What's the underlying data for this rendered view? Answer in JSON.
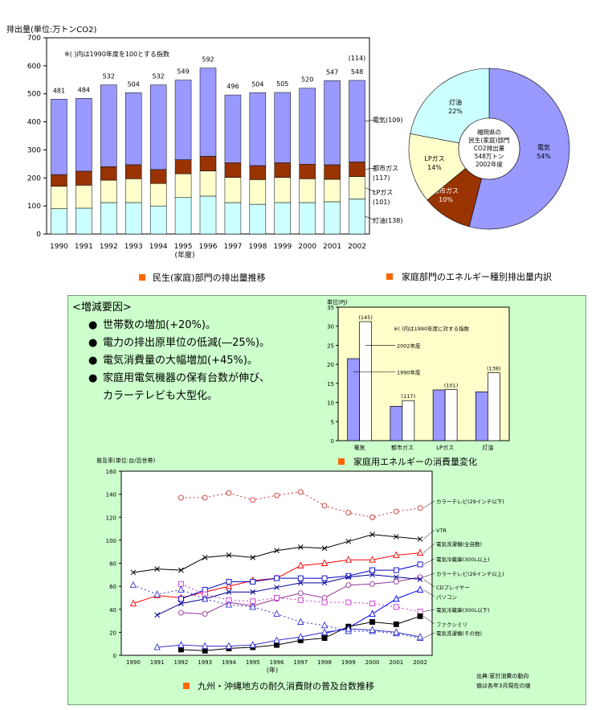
{
  "chart_data": [
    {
      "type": "bar",
      "subtype": "stacked",
      "ylabel": "排出量(単位:万トンCO2)",
      "xlabel": "(年度)",
      "ylim": [
        0,
        700
      ],
      "yticks": [
        0,
        100,
        200,
        300,
        400,
        500,
        600,
        700
      ],
      "note": "※( )内は1990年度を100とする指数",
      "categories": [
        "1990",
        "1991",
        "1992",
        "1993",
        "1994",
        "1995",
        "1996",
        "1997",
        "1998",
        "1999",
        "2000",
        "2001",
        "2002"
      ],
      "totals": [
        "481",
        "484",
        "532",
        "504",
        "532",
        "549",
        "592",
        "496",
        "504",
        "505",
        "520",
        "547",
        "548"
      ],
      "total_values": [
        481,
        484,
        532,
        504,
        532,
        549,
        592,
        496,
        504,
        505,
        520,
        547,
        548
      ],
      "total_index": "(114)",
      "series": [
        {
          "name": "灯油(138)",
          "color": "#ccffff",
          "values": [
            90,
            92,
            112,
            112,
            100,
            130,
            135,
            112,
            106,
            112,
            112,
            115,
            125
          ]
        },
        {
          "name": "LPガス(101)",
          "color": "#ffffcc",
          "values": [
            80,
            82,
            80,
            85,
            80,
            85,
            90,
            90,
            88,
            90,
            85,
            80,
            80
          ]
        },
        {
          "name": "都市ガス(117)",
          "color": "#993300",
          "values": [
            42,
            50,
            48,
            50,
            50,
            50,
            52,
            52,
            50,
            52,
            52,
            52,
            52
          ]
        },
        {
          "name": "電気(109)",
          "color": "#9999ff",
          "values": [
            269,
            260,
            292,
            257,
            302,
            284,
            315,
            242,
            260,
            251,
            271,
            300,
            291
          ]
        }
      ],
      "caption": "民生(家庭)部門の排出量推移"
    },
    {
      "type": "pie",
      "subtype": "donut",
      "center_text": [
        "福岡県の",
        "民生(家庭)部門",
        "CO2排出量",
        "548万トン",
        "2002年度"
      ],
      "slices": [
        {
          "label": "電気",
          "value_label": "54%",
          "value": 54,
          "color": "#9999ff"
        },
        {
          "label": "都市ガス",
          "value_label": "10%",
          "value": 10,
          "color": "#993300"
        },
        {
          "label": "LPガス",
          "value_label": "14%",
          "value": 14,
          "color": "#ffffcc"
        },
        {
          "label": "灯油",
          "value_label": "22%",
          "value": 22,
          "color": "#ccffff"
        }
      ],
      "caption": "家庭部門のエネルギー種別排出量内訳"
    },
    {
      "type": "bar",
      "ylabel": "単位(PJ)",
      "ylim": [
        0,
        35
      ],
      "yticks": [
        0,
        5,
        10,
        15,
        20,
        25,
        30,
        35
      ],
      "note": "※( )内は1990年度に対する指数",
      "categories": [
        "電気",
        "都市ガス",
        "LPガス",
        "灯油"
      ],
      "series": [
        {
          "name": "1990年度",
          "color": "#9999ff",
          "values": [
            21.5,
            9.0,
            13.3,
            12.8
          ]
        },
        {
          "name": "2002年度",
          "color": "#ffffff",
          "values": [
            31.2,
            10.5,
            13.4,
            17.8
          ]
        }
      ],
      "index_labels": [
        "(145)",
        "(117)",
        "(101)",
        "(138)"
      ],
      "caption": "家庭用エネルギーの消費量変化"
    },
    {
      "type": "line",
      "ylabel": "普及率(単位:台/百世帯)",
      "xlabel": "(年)",
      "ylim": [
        0,
        160
      ],
      "yticks": [
        0,
        20,
        40,
        60,
        80,
        100,
        120,
        140,
        160
      ],
      "x": [
        "1990",
        "1991",
        "1992",
        "1993",
        "1994",
        "1995",
        "1996",
        "1997",
        "1998",
        "1999",
        "2000",
        "2001",
        "2002"
      ],
      "series": [
        {
          "name": "カラーテレビ(29インチ以下)",
          "color": "#cc3333",
          "style": "dotted",
          "marker": "circle",
          "values": [
            null,
            null,
            137,
            137,
            141,
            135,
            139,
            142,
            130,
            124,
            120,
            125,
            128
          ]
        },
        {
          "name": "VTR",
          "color": "#000000",
          "style": "solid",
          "marker": "x",
          "values": [
            72,
            75,
            74,
            85,
            87,
            85,
            91,
            94,
            93,
            99,
            105,
            103,
            101
          ]
        },
        {
          "name": "電気洗濯機(全自動)",
          "color": "#ff0000",
          "style": "solid",
          "marker": "triangle",
          "values": [
            45,
            52,
            50,
            55,
            60,
            65,
            67,
            78,
            80,
            83,
            83,
            87,
            89
          ]
        },
        {
          "name": "電気冷蔵庫(300L以上)",
          "color": "#0000cc",
          "style": "solid",
          "marker": "square",
          "values": [
            null,
            null,
            49,
            57,
            64,
            64,
            67,
            67,
            67,
            69,
            74,
            74,
            79
          ]
        },
        {
          "name": "カラーテレビ(29インチ以上)",
          "color": "#993399",
          "style": "solid",
          "marker": "circle",
          "values": [
            null,
            null,
            37,
            36,
            46,
            43,
            49,
            54,
            50,
            61,
            62,
            64,
            68
          ]
        },
        {
          "name": "CDプレイヤー",
          "color": "#000099",
          "style": "solid",
          "marker": "x",
          "values": [
            null,
            35,
            45,
            49,
            55,
            55,
            59,
            63,
            63,
            68,
            70,
            68,
            66
          ]
        },
        {
          "name": "パソコン",
          "color": "#0000ff",
          "style": "solid",
          "marker": "triangle",
          "values": [
            null,
            null,
            null,
            null,
            null,
            null,
            null,
            null,
            19,
            24,
            36,
            49,
            57
          ]
        },
        {
          "name": "電気冷蔵庫(300L以下)",
          "color": "#cc33cc",
          "style": "dotted",
          "marker": "square",
          "values": [
            null,
            null,
            62,
            53,
            48,
            47,
            50,
            48,
            46,
            46,
            45,
            42,
            38
          ]
        },
        {
          "name": "ファクシミリ",
          "color": "#000000",
          "style": "solid",
          "marker": "square",
          "values": [
            null,
            null,
            5,
            4,
            6,
            7,
            9,
            13,
            15,
            25,
            29,
            27,
            34
          ]
        },
        {
          "name": "電気洗濯機(その他)",
          "color": "#3333cc",
          "style": "dotted",
          "marker": "triangle",
          "values": [
            61,
            53,
            57,
            49,
            44,
            42,
            36,
            29,
            26,
            21,
            21,
            19,
            15
          ]
        },
        {
          "name": "",
          "color": "#3333cc",
          "style": "solid",
          "marker": "triangle",
          "values": [
            null,
            7,
            9,
            8,
            8,
            9,
            13,
            16,
            20,
            23,
            22,
            20,
            16
          ]
        }
      ],
      "source_note": [
        "出典:家計消費の動向",
        "値は各年3月現在の値"
      ],
      "caption": "九州・沖縄地方の耐久消費財の普及台数推移"
    }
  ],
  "factors": {
    "heading": "<増減要因>",
    "items": [
      "世帯数の増加(+20%)。",
      "電力の排出原単位の低減(―25%)。",
      "電気消費量の大幅増加(+45%)。",
      "家庭用電気機器の保有台数が伸び、"
    ],
    "continuation": "カラーテレビも大型化。",
    "bullet": "●"
  },
  "colors": {
    "panel_bg": "#ccffcc",
    "chart_bg": "#ffffcc",
    "caption_marker": "#ff6600"
  }
}
